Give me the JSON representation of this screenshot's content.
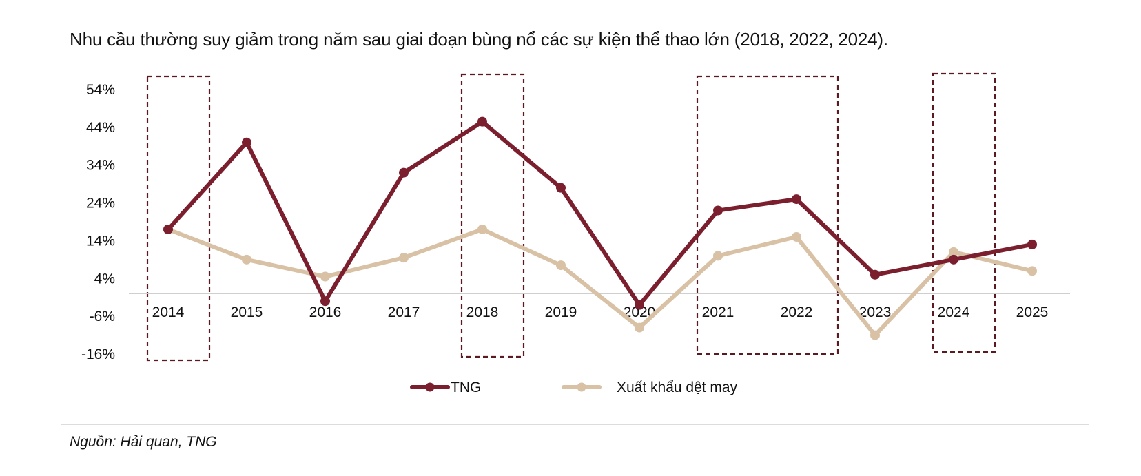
{
  "title": "Nhu cầu thường suy giảm trong năm sau giai đoạn bùng nổ các sự kiện thể thao lớn (2018, 2022, 2024).",
  "source": "Nguồn: Hải quan, TNG",
  "colors": {
    "tng": "#7b1f2e",
    "export": "#d8c1a4",
    "highlight": "#5b1a22",
    "axis": "#cfcfcf"
  },
  "chart_data": {
    "type": "line",
    "title": "Nhu cầu thường suy giảm trong năm sau giai đoạn bùng nổ các sự kiện thể thao lớn (2018, 2022, 2024).",
    "x": [
      "2014",
      "2015",
      "2016",
      "2017",
      "2018",
      "2019",
      "2020",
      "2021",
      "2022",
      "2023",
      "2024",
      "2025"
    ],
    "yticks": [
      "54%",
      "44%",
      "34%",
      "24%",
      "14%",
      "4%",
      "-6%",
      "-16%"
    ],
    "ylim": [
      -16,
      54
    ],
    "series": [
      {
        "name": "TNG",
        "color": "#7b1f2e",
        "values": [
          17,
          40,
          -2,
          32,
          45.5,
          28,
          -3,
          22,
          25,
          5,
          9,
          13
        ]
      },
      {
        "name": "Xuất khẩu dệt may",
        "color": "#d8c1a4",
        "values": [
          17,
          9,
          4.5,
          9.5,
          17,
          7.5,
          -9,
          10,
          15,
          -11,
          11,
          6
        ]
      }
    ],
    "highlighted_years": [
      "2014",
      "2018",
      "2021",
      "2022",
      "2024"
    ],
    "legend_position": "bottom-center",
    "grid": false
  }
}
